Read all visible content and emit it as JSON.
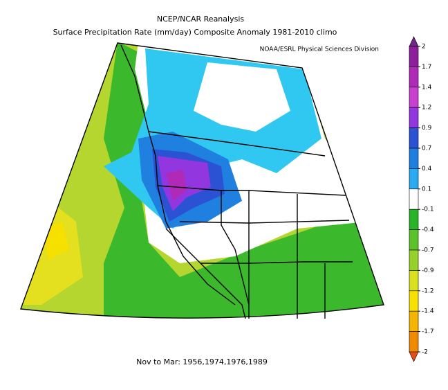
{
  "title": [
    "NCEP/NCAR Reanalysis",
    "Surface Precipitation Rate (mm/day) Composite Anomaly 1981-2010 climo"
  ],
  "credit": "NOAA/ESRL Physical Sciences Division",
  "caption": "Nov to Mar: 1956,1974,1976,1989",
  "colorbar": {
    "ticks": [
      2,
      1.7,
      1.4,
      1.2,
      0.9,
      0.7,
      0.4,
      0.1,
      -0.1,
      -0.4,
      -0.7,
      -0.9,
      -1.2,
      -1.4,
      -1.7,
      -2
    ],
    "colors": [
      "#6e2a86",
      "#8e1f9c",
      "#b02ab8",
      "#c83fd0",
      "#9236e0",
      "#2a52d2",
      "#1e7ee0",
      "#2aaaf0",
      "#ffffff",
      "#28b428",
      "#5cc22c",
      "#98d02a",
      "#d8e020",
      "#f8e000",
      "#f4b400",
      "#f08a00",
      "#e84c10"
    ]
  }
}
